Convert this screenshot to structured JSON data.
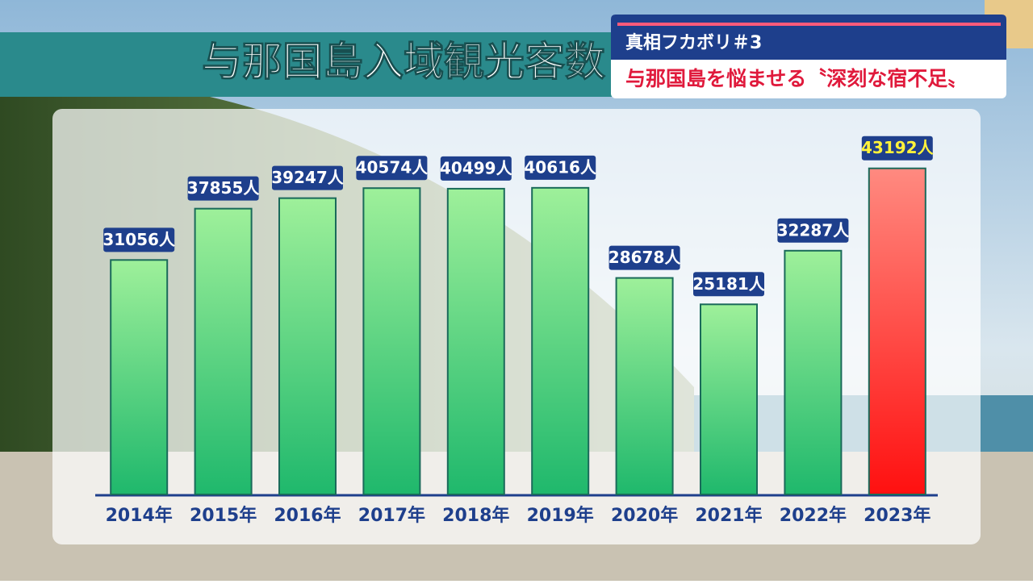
{
  "chart_data": {
    "type": "bar",
    "title": "与那国島入域観光客数",
    "annotations": [
      "真相フカボリ＃3",
      "与那国島を悩ませる〝深刻な宿不足〟"
    ],
    "categories": [
      "2014年",
      "2015年",
      "2016年",
      "2017年",
      "2018年",
      "2019年",
      "2020年",
      "2021年",
      "2022年",
      "2023年"
    ],
    "values": [
      31056,
      37855,
      39247,
      40574,
      40499,
      40616,
      28678,
      25181,
      32287,
      43192
    ],
    "value_labels": [
      "31056人",
      "37855人",
      "39247人",
      "40574人",
      "40499人",
      "40616人",
      "28678人",
      "25181人",
      "32287人",
      "43192人"
    ],
    "colors": [
      "#2ecc71",
      "#2ecc71",
      "#2ecc71",
      "#2ecc71",
      "#2ecc71",
      "#2ecc71",
      "#2ecc71",
      "#2ecc71",
      "#2ecc71",
      "#ff2020"
    ],
    "value_label_colors": [
      "#ffffff",
      "#ffffff",
      "#ffffff",
      "#ffffff",
      "#ffffff",
      "#ffffff",
      "#ffffff",
      "#ffffff",
      "#ffffff",
      "#fff23a"
    ],
    "ylim": [
      0,
      50000
    ]
  }
}
